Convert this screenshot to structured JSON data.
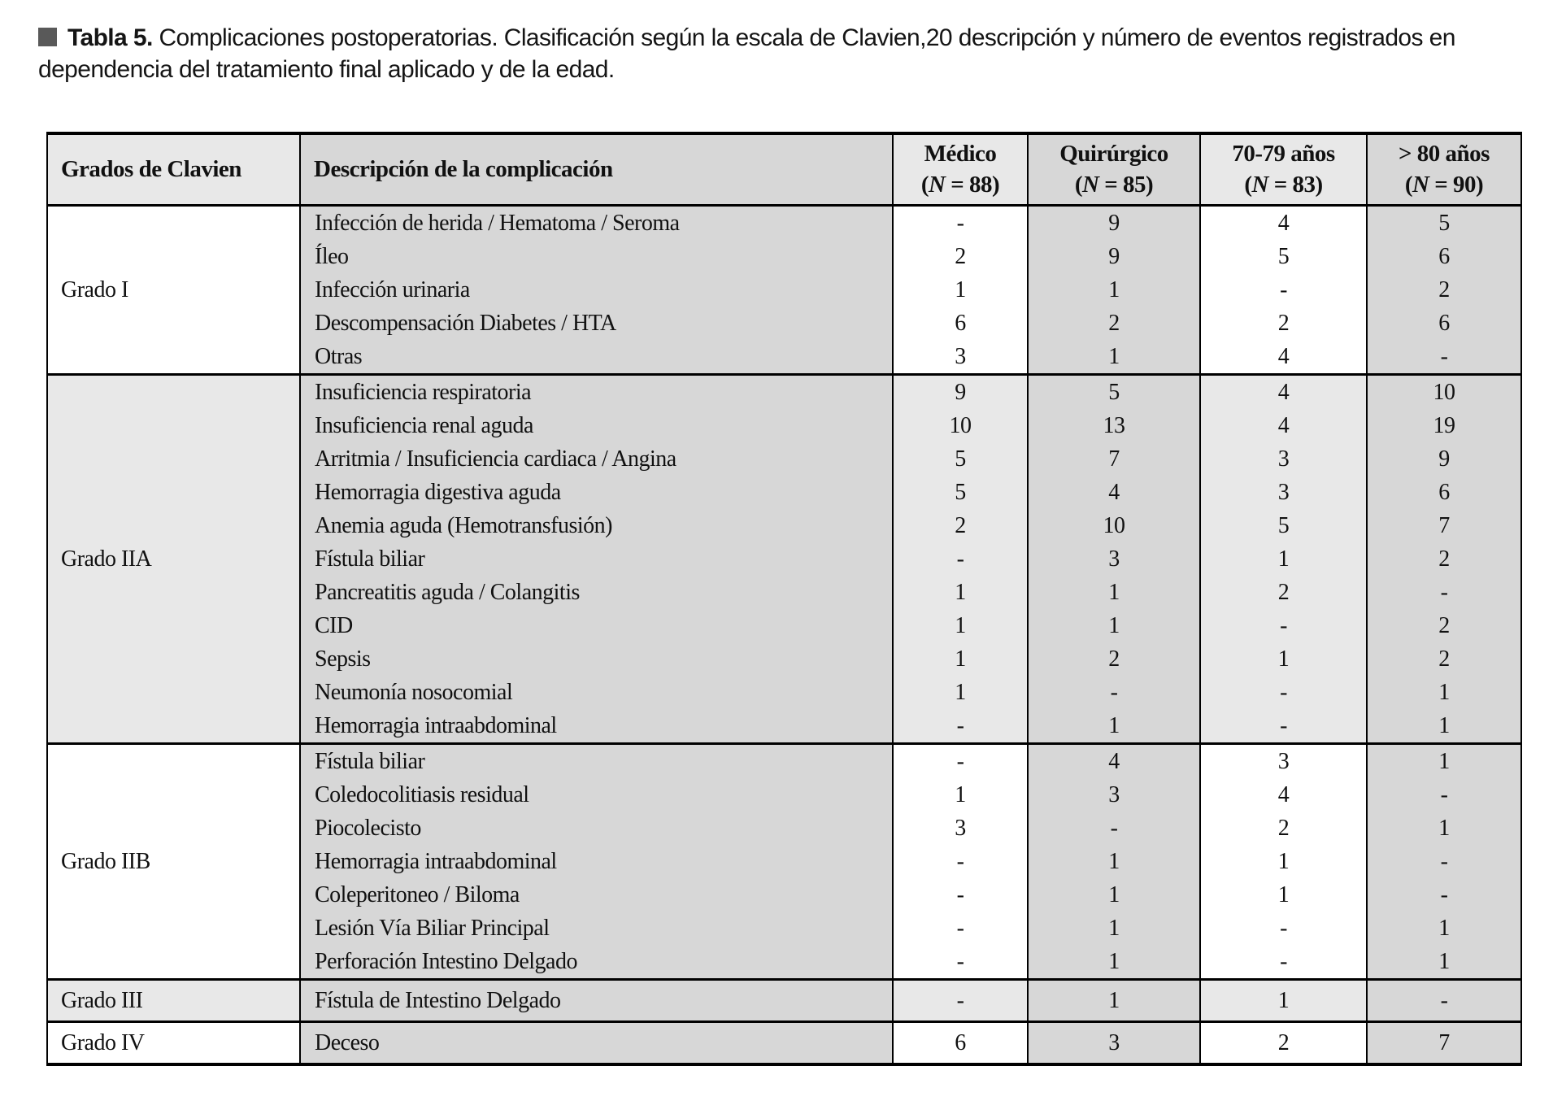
{
  "caption": {
    "label": "Tabla 5.",
    "text": "Complicaciones postoperatorias. Clasificación según la escala de Clavien,20 descripción y número de eventos registrados en dependencia del tratamiento final aplicado y de la edad."
  },
  "colors": {
    "cell_dark": "#d7d7d7",
    "cell_light": "#e8e8e8",
    "caption_square": "#595959",
    "border": "#000000"
  },
  "table": {
    "columns": [
      {
        "label": "Grados de Clavien"
      },
      {
        "label": "Descripción de la complicación"
      },
      {
        "label": "Médico",
        "n_label": "(N = 88)"
      },
      {
        "label": "Quirúrgico",
        "n_label": "(N = 85)"
      },
      {
        "label": "70-79 años",
        "n_label": "(N = 83)"
      },
      {
        "label": "> 80 años",
        "n_label": "(N = 90)"
      }
    ],
    "sections": [
      {
        "grade": "Grado I",
        "shaded": false,
        "rows": [
          {
            "desc": "Infección de herida / Hematoma / Seroma",
            "values": [
              "-",
              "9",
              "4",
              "5"
            ]
          },
          {
            "desc": "Íleo",
            "values": [
              "2",
              "9",
              "5",
              "6"
            ]
          },
          {
            "desc": "Infección urinaria",
            "values": [
              "1",
              "1",
              "-",
              "2"
            ]
          },
          {
            "desc": "Descompensación Diabetes / HTA",
            "values": [
              "6",
              "2",
              "2",
              "6"
            ]
          },
          {
            "desc": "Otras",
            "values": [
              "3",
              "1",
              "4",
              "-"
            ]
          }
        ]
      },
      {
        "grade": "Grado IIA",
        "shaded": true,
        "rows": [
          {
            "desc": "Insuficiencia respiratoria",
            "values": [
              "9",
              "5",
              "4",
              "10"
            ]
          },
          {
            "desc": "Insuficiencia renal aguda",
            "values": [
              "10",
              "13",
              "4",
              "19"
            ]
          },
          {
            "desc": "Arritmia / Insuficiencia cardiaca / Angina",
            "values": [
              "5",
              "7",
              "3",
              "9"
            ]
          },
          {
            "desc": "Hemorragia digestiva aguda",
            "values": [
              "5",
              "4",
              "3",
              "6"
            ]
          },
          {
            "desc": "Anemia aguda (Hemotransfusión)",
            "values": [
              "2",
              "10",
              "5",
              "7"
            ]
          },
          {
            "desc": "Fístula biliar",
            "values": [
              "-",
              "3",
              "1",
              "2"
            ]
          },
          {
            "desc": "Pancreatitis aguda / Colangitis",
            "values": [
              "1",
              "1",
              "2",
              "-"
            ]
          },
          {
            "desc": "CID",
            "values": [
              "1",
              "1",
              "-",
              "2"
            ]
          },
          {
            "desc": "Sepsis",
            "values": [
              "1",
              "2",
              "1",
              "2"
            ]
          },
          {
            "desc": "Neumonía nosocomial",
            "values": [
              "1",
              "-",
              "-",
              "1"
            ]
          },
          {
            "desc": "Hemorragia intraabdominal",
            "values": [
              "-",
              "1",
              "-",
              "1"
            ]
          }
        ]
      },
      {
        "grade": "Grado IIB",
        "shaded": false,
        "rows": [
          {
            "desc": "Fístula biliar",
            "values": [
              "-",
              "4",
              "3",
              "1"
            ]
          },
          {
            "desc": "Coledocolitiasis residual",
            "values": [
              "1",
              "3",
              "4",
              "-"
            ]
          },
          {
            "desc": "Piocolecisto",
            "values": [
              "3",
              "-",
              "2",
              "1"
            ]
          },
          {
            "desc": "Hemorragia intraabdominal",
            "values": [
              "-",
              "1",
              "1",
              "-"
            ]
          },
          {
            "desc": "Coleperitoneo / Biloma",
            "values": [
              "-",
              "1",
              "1",
              "-"
            ]
          },
          {
            "desc": "Lesión Vía Biliar Principal",
            "values": [
              "-",
              "1",
              "-",
              "1"
            ]
          },
          {
            "desc": "Perforación Intestino Delgado",
            "values": [
              "-",
              "1",
              "-",
              "1"
            ]
          }
        ]
      },
      {
        "grade": "Grado III",
        "shaded": true,
        "rows": [
          {
            "desc": "Fístula de Intestino Delgado",
            "values": [
              "-",
              "1",
              "1",
              "-"
            ]
          }
        ]
      },
      {
        "grade": "Grado IV",
        "shaded": false,
        "rows": [
          {
            "desc": "Deceso",
            "values": [
              "6",
              "3",
              "2",
              "7"
            ]
          }
        ]
      }
    ]
  }
}
